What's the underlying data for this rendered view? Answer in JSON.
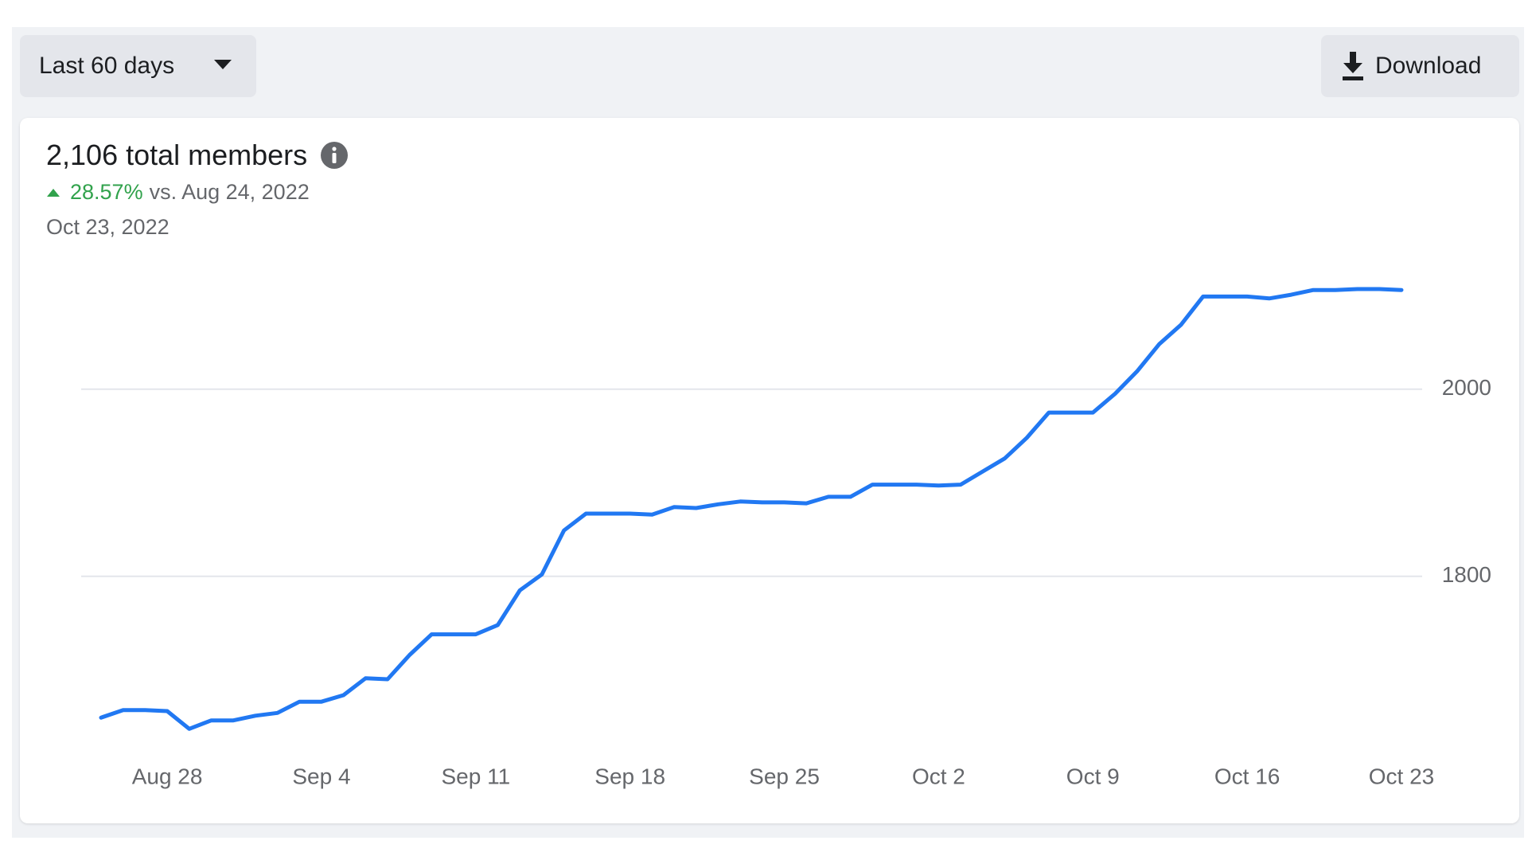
{
  "controls": {
    "range": "Last 60 days",
    "download": "Download"
  },
  "summary": {
    "title": "2,106 total members",
    "change": "28.57%",
    "comparison": "vs. Aug 24, 2022",
    "date": "Oct 23, 2022"
  },
  "chart_data": {
    "type": "line",
    "color": "#2178f2",
    "categories": [
      null,
      null,
      null,
      "Aug 28",
      null,
      null,
      null,
      null,
      null,
      null,
      "Sep 4",
      null,
      null,
      null,
      null,
      null,
      null,
      "Sep 11",
      null,
      null,
      null,
      null,
      null,
      null,
      "Sep 18",
      null,
      null,
      null,
      null,
      null,
      null,
      "Sep 25",
      null,
      null,
      null,
      null,
      null,
      null,
      "Oct 2",
      null,
      null,
      null,
      null,
      null,
      null,
      "Oct 9",
      null,
      null,
      null,
      null,
      null,
      null,
      "Oct 16",
      null,
      null,
      null,
      null,
      null,
      null,
      "Oct 23"
    ],
    "values": [
      1649,
      1657,
      1657,
      1656,
      1637,
      1646,
      1646,
      1651,
      1654,
      1666,
      1666,
      1673,
      1691,
      1690,
      1716,
      1738,
      1738,
      1738,
      1748,
      1785,
      1802,
      1849,
      1867,
      1867,
      1867,
      1866,
      1874,
      1873,
      1877,
      1880,
      1879,
      1879,
      1878,
      1885,
      1885,
      1898,
      1898,
      1898,
      1897,
      1898,
      1912,
      1926,
      1948,
      1975,
      1975,
      1975,
      1995,
      2019,
      2048,
      2069,
      2099,
      2099,
      2099,
      2097,
      2101,
      2106,
      2106,
      2107,
      2107,
      2106
    ],
    "ylim": [
      1610,
      2130
    ],
    "yticks": [
      1800,
      2000
    ],
    "grid": true
  }
}
